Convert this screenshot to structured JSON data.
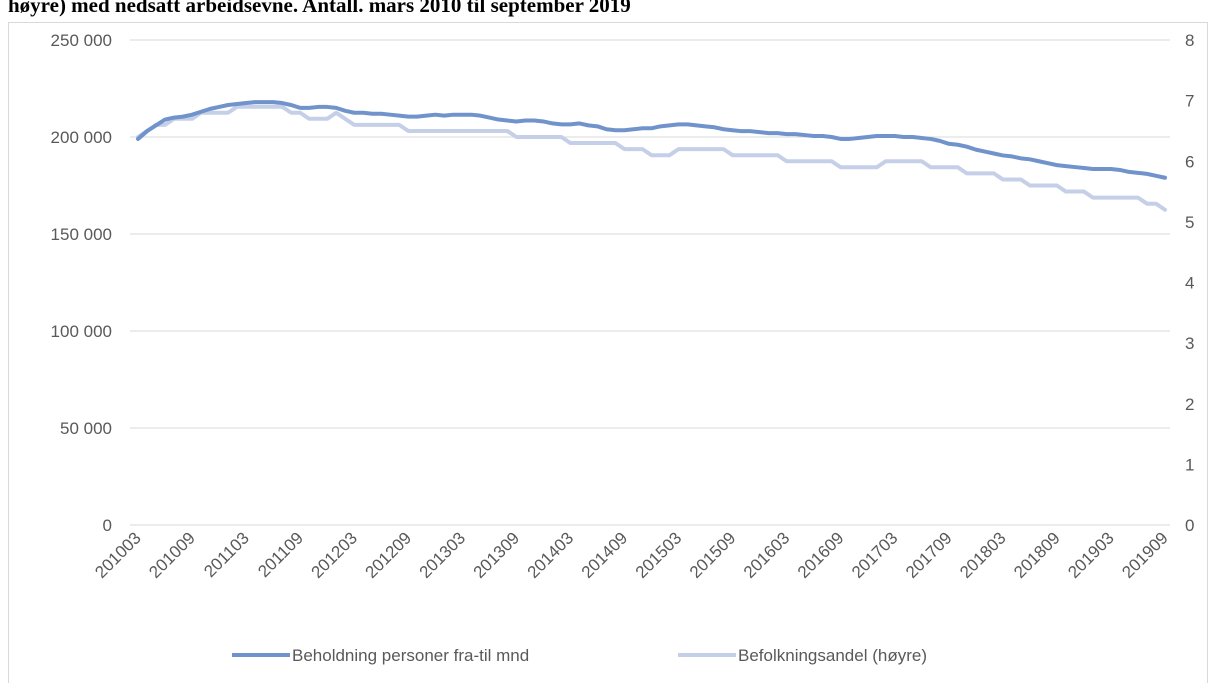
{
  "chart_data": {
    "type": "line",
    "title": "høyre) med nedsatt arbeidsevne. Antall. mars 2010 til september 2019",
    "categories": [
      "201003",
      null,
      null,
      null,
      null,
      null,
      "201009",
      null,
      null,
      null,
      null,
      null,
      "201103",
      null,
      null,
      null,
      null,
      null,
      "201109",
      null,
      null,
      null,
      null,
      null,
      "201203",
      null,
      null,
      null,
      null,
      null,
      "201209",
      null,
      null,
      null,
      null,
      null,
      "201303",
      null,
      null,
      null,
      null,
      null,
      "201309",
      null,
      null,
      null,
      null,
      null,
      "201403",
      null,
      null,
      null,
      null,
      null,
      "201409",
      null,
      null,
      null,
      null,
      null,
      "201503",
      null,
      null,
      null,
      null,
      null,
      "201509",
      null,
      null,
      null,
      null,
      null,
      "201603",
      null,
      null,
      null,
      null,
      null,
      "201609",
      null,
      null,
      null,
      null,
      null,
      "201703",
      null,
      null,
      null,
      null,
      null,
      "201709",
      null,
      null,
      null,
      null,
      null,
      "201803",
      null,
      null,
      null,
      null,
      null,
      "201809",
      null,
      null,
      null,
      null,
      null,
      "201903",
      null,
      null,
      null,
      null,
      null,
      "201909"
    ],
    "series": [
      {
        "name": "Beholdning personer fra-til mnd",
        "color": "#7193cb",
        "axis": "y",
        "values": [
          199000,
          203000,
          206000,
          209000,
          210000,
          210500,
          211500,
          213000,
          214500,
          215500,
          216500,
          217000,
          217500,
          218000,
          218000,
          218000,
          217500,
          216500,
          215000,
          215000,
          215500,
          215500,
          215000,
          213500,
          212500,
          212500,
          212000,
          212000,
          211500,
          211000,
          210500,
          210500,
          211000,
          211500,
          211000,
          211500,
          211500,
          211500,
          211000,
          210000,
          209000,
          208500,
          208000,
          208500,
          208500,
          208000,
          207000,
          206500,
          206500,
          207000,
          206000,
          205500,
          204000,
          203500,
          203500,
          204000,
          204500,
          204500,
          205500,
          206000,
          206500,
          206500,
          206000,
          205500,
          205000,
          204000,
          203500,
          203000,
          203000,
          202500,
          202000,
          202000,
          201500,
          201500,
          201000,
          200500,
          200500,
          200000,
          199000,
          199000,
          199500,
          200000,
          200500,
          200500,
          200500,
          200000,
          200000,
          199500,
          199000,
          198000,
          196500,
          196000,
          195000,
          193500,
          192500,
          191500,
          190500,
          190000,
          189000,
          188500,
          187500,
          186500,
          185500,
          185000,
          184500,
          184000,
          183500,
          183500,
          183500,
          183000,
          182000,
          181500,
          181000,
          180000,
          179000
        ]
      },
      {
        "name": "Befolkningsandel (høyre)",
        "color": "#c5cfe8",
        "axis": "y2",
        "values": [
          6.4,
          6.5,
          6.6,
          6.6,
          6.7,
          6.7,
          6.7,
          6.8,
          6.8,
          6.8,
          6.8,
          6.9,
          6.9,
          6.9,
          6.9,
          6.9,
          6.9,
          6.8,
          6.8,
          6.7,
          6.7,
          6.7,
          6.8,
          6.7,
          6.6,
          6.6,
          6.6,
          6.6,
          6.6,
          6.6,
          6.5,
          6.5,
          6.5,
          6.5,
          6.5,
          6.5,
          6.5,
          6.5,
          6.5,
          6.5,
          6.5,
          6.5,
          6.4,
          6.4,
          6.4,
          6.4,
          6.4,
          6.4,
          6.3,
          6.3,
          6.3,
          6.3,
          6.3,
          6.3,
          6.2,
          6.2,
          6.2,
          6.1,
          6.1,
          6.1,
          6.2,
          6.2,
          6.2,
          6.2,
          6.2,
          6.2,
          6.1,
          6.1,
          6.1,
          6.1,
          6.1,
          6.1,
          6.0,
          6.0,
          6.0,
          6.0,
          6.0,
          6.0,
          5.9,
          5.9,
          5.9,
          5.9,
          5.9,
          6.0,
          6.0,
          6.0,
          6.0,
          6.0,
          5.9,
          5.9,
          5.9,
          5.9,
          5.8,
          5.8,
          5.8,
          5.8,
          5.7,
          5.7,
          5.7,
          5.6,
          5.6,
          5.6,
          5.6,
          5.5,
          5.5,
          5.5,
          5.4,
          5.4,
          5.4,
          5.4,
          5.4,
          5.4,
          5.3,
          5.3,
          5.2
        ]
      }
    ],
    "ylim": [
      0,
      250000
    ],
    "yticks": [
      {
        "value": 0,
        "label": "0"
      },
      {
        "value": 50000,
        "label": "50 000"
      },
      {
        "value": 100000,
        "label": "100 000"
      },
      {
        "value": 150000,
        "label": "150 000"
      },
      {
        "value": 200000,
        "label": "200 000"
      },
      {
        "value": 250000,
        "label": "250 000"
      }
    ],
    "y2lim": [
      0,
      8
    ],
    "y2ticks": [
      0,
      1,
      2,
      3,
      4,
      5,
      6,
      7,
      8
    ],
    "grid": true,
    "legend": "bottom"
  }
}
